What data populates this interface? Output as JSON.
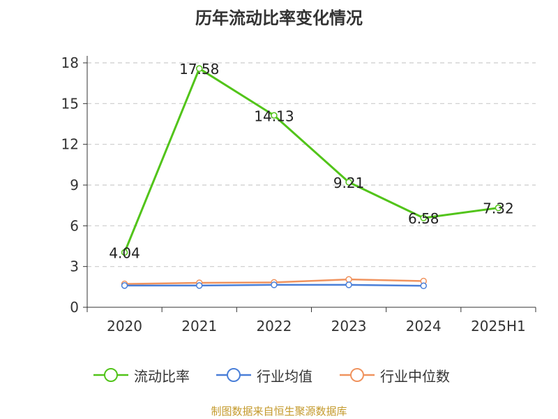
{
  "title": "历年流动比率变化情况",
  "source": "制图数据来自恒生聚源数据库",
  "chart_data": {
    "type": "line",
    "title": "历年流动比率变化情况",
    "categories": [
      "2020",
      "2021",
      "2022",
      "2023",
      "2024",
      "2025H1"
    ],
    "ylim": [
      0,
      18
    ],
    "yticks": [
      0,
      3,
      6,
      9,
      12,
      15,
      18
    ],
    "grid": true,
    "legend_position": "bottom",
    "series": [
      {
        "name": "流动比率",
        "color": "#52c41a",
        "values": [
          4.04,
          17.58,
          14.13,
          9.21,
          6.58,
          7.32
        ],
        "labels": [
          "4.04",
          "17.58",
          "14.13",
          "9.21",
          "6.58",
          "7.32"
        ],
        "show_labels": true
      },
      {
        "name": "行业均值",
        "color": "#4a7fd8",
        "values": [
          1.6,
          1.6,
          1.65,
          1.65,
          1.58,
          null
        ],
        "show_labels": false
      },
      {
        "name": "行业中位数",
        "color": "#f0935e",
        "values": [
          1.72,
          1.8,
          1.83,
          2.05,
          1.93,
          null
        ],
        "show_labels": false
      }
    ]
  }
}
